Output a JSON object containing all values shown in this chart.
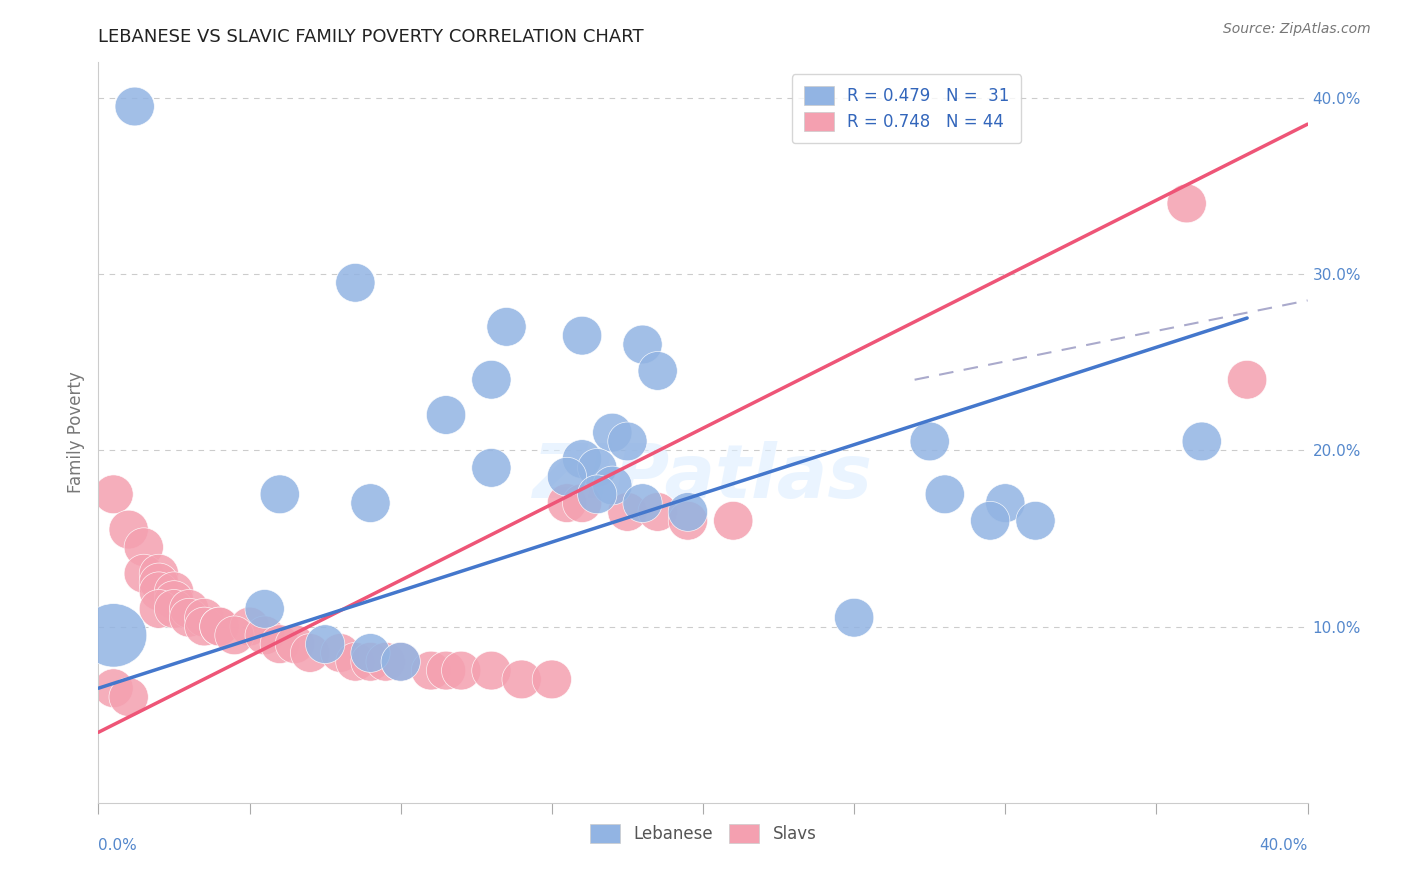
{
  "title": "LEBANESE VS SLAVIC FAMILY POVERTY CORRELATION CHART",
  "source": "Source: ZipAtlas.com",
  "ylabel": "Family Poverty",
  "watermark": "ZIPatlas",
  "legend_blue_label": "R = 0.479   N =  31",
  "legend_pink_label": "R = 0.748   N = 44",
  "right_yticks": [
    10.0,
    20.0,
    30.0,
    40.0
  ],
  "xlim": [
    0.0,
    0.4
  ],
  "ylim": [
    0.0,
    0.42
  ],
  "blue_color": "#92B4E3",
  "pink_color": "#F4A0B0",
  "blue_line_color": "#4477CC",
  "pink_line_color": "#EE5577",
  "gray_dash_color": "#AAAACC",
  "title_color": "#222222",
  "right_label_color": "#5588CC",
  "legend_color": "#3366BB",
  "blue_dots": [
    [
      0.012,
      0.395
    ],
    [
      0.085,
      0.295
    ],
    [
      0.135,
      0.27
    ],
    [
      0.16,
      0.265
    ],
    [
      0.18,
      0.26
    ],
    [
      0.185,
      0.245
    ],
    [
      0.13,
      0.24
    ],
    [
      0.115,
      0.22
    ],
    [
      0.17,
      0.21
    ],
    [
      0.175,
      0.205
    ],
    [
      0.16,
      0.195
    ],
    [
      0.165,
      0.19
    ],
    [
      0.275,
      0.205
    ],
    [
      0.365,
      0.205
    ],
    [
      0.13,
      0.19
    ],
    [
      0.155,
      0.185
    ],
    [
      0.17,
      0.18
    ],
    [
      0.06,
      0.175
    ],
    [
      0.09,
      0.17
    ],
    [
      0.165,
      0.175
    ],
    [
      0.18,
      0.17
    ],
    [
      0.195,
      0.165
    ],
    [
      0.28,
      0.175
    ],
    [
      0.3,
      0.17
    ],
    [
      0.295,
      0.16
    ],
    [
      0.31,
      0.16
    ],
    [
      0.055,
      0.11
    ],
    [
      0.075,
      0.09
    ],
    [
      0.09,
      0.085
    ],
    [
      0.1,
      0.08
    ],
    [
      0.25,
      0.105
    ]
  ],
  "pink_dots": [
    [
      0.005,
      0.175
    ],
    [
      0.01,
      0.155
    ],
    [
      0.015,
      0.145
    ],
    [
      0.015,
      0.13
    ],
    [
      0.02,
      0.13
    ],
    [
      0.02,
      0.125
    ],
    [
      0.02,
      0.12
    ],
    [
      0.025,
      0.12
    ],
    [
      0.025,
      0.115
    ],
    [
      0.02,
      0.11
    ],
    [
      0.025,
      0.11
    ],
    [
      0.03,
      0.11
    ],
    [
      0.03,
      0.105
    ],
    [
      0.035,
      0.105
    ],
    [
      0.035,
      0.1
    ],
    [
      0.04,
      0.1
    ],
    [
      0.04,
      0.1
    ],
    [
      0.05,
      0.1
    ],
    [
      0.045,
      0.095
    ],
    [
      0.055,
      0.095
    ],
    [
      0.06,
      0.09
    ],
    [
      0.065,
      0.09
    ],
    [
      0.07,
      0.085
    ],
    [
      0.08,
      0.085
    ],
    [
      0.085,
      0.08
    ],
    [
      0.09,
      0.08
    ],
    [
      0.095,
      0.08
    ],
    [
      0.1,
      0.08
    ],
    [
      0.11,
      0.075
    ],
    [
      0.115,
      0.075
    ],
    [
      0.12,
      0.075
    ],
    [
      0.13,
      0.075
    ],
    [
      0.14,
      0.07
    ],
    [
      0.15,
      0.07
    ],
    [
      0.155,
      0.17
    ],
    [
      0.16,
      0.17
    ],
    [
      0.175,
      0.165
    ],
    [
      0.185,
      0.165
    ],
    [
      0.195,
      0.16
    ],
    [
      0.21,
      0.16
    ],
    [
      0.36,
      0.34
    ],
    [
      0.38,
      0.24
    ],
    [
      0.005,
      0.065
    ],
    [
      0.01,
      0.06
    ]
  ],
  "blue_line": [
    [
      0.0,
      0.065
    ],
    [
      0.38,
      0.275
    ]
  ],
  "blue_dash_line": [
    [
      0.27,
      0.24
    ],
    [
      0.4,
      0.285
    ]
  ],
  "pink_line": [
    [
      0.0,
      0.04
    ],
    [
      0.4,
      0.385
    ]
  ]
}
